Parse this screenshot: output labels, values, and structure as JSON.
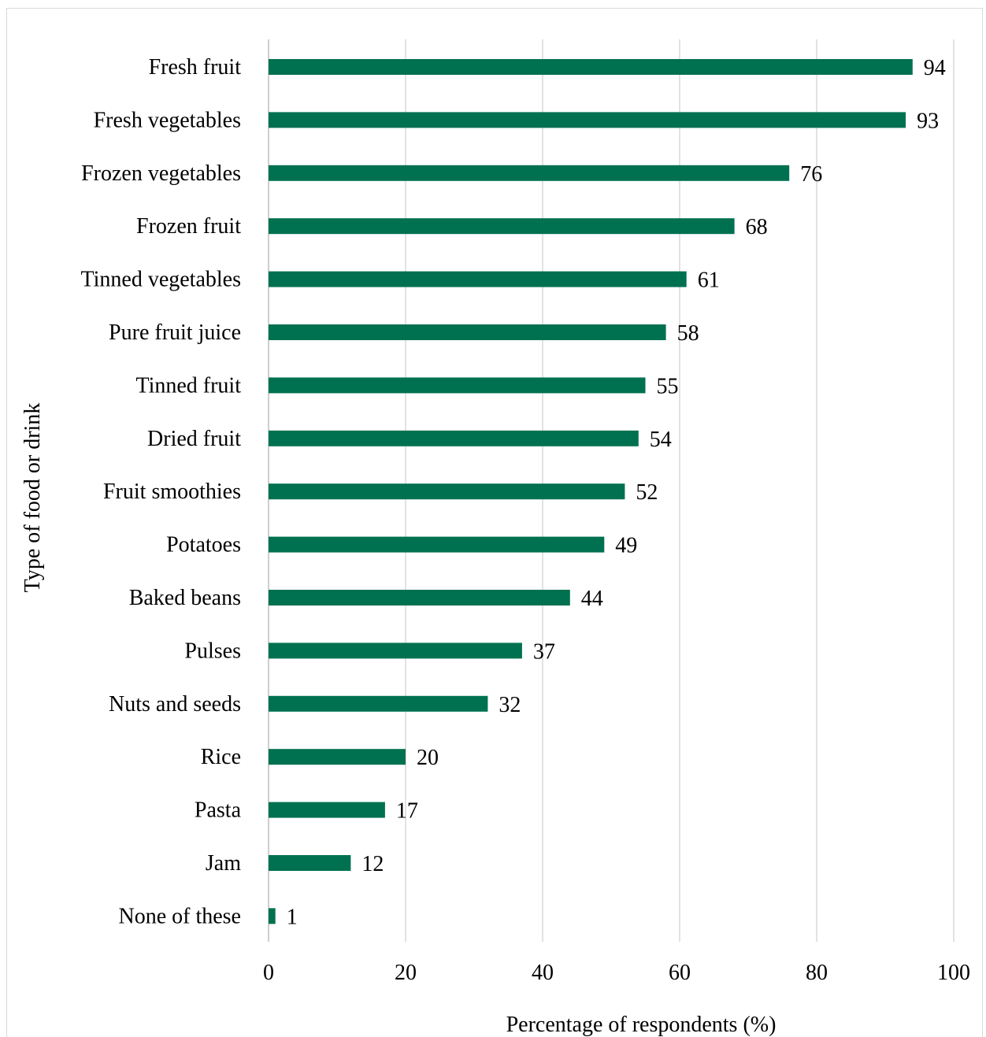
{
  "chart_data": {
    "type": "bar",
    "orientation": "horizontal",
    "categories": [
      "Fresh fruit",
      "Fresh vegetables",
      "Frozen vegetables",
      "Frozen fruit",
      "Tinned vegetables",
      "Pure fruit juice",
      "Tinned fruit",
      "Dried fruit",
      "Fruit smoothies",
      "Potatoes",
      "Baked beans",
      "Pulses",
      "Nuts and seeds",
      "Rice",
      "Pasta",
      "Jam",
      "None of these"
    ],
    "values": [
      94,
      93,
      76,
      68,
      61,
      58,
      55,
      54,
      52,
      49,
      44,
      37,
      32,
      20,
      17,
      12,
      1
    ],
    "data_labels": [
      "94",
      "93",
      "76",
      "68",
      "61",
      "58",
      "55",
      "54",
      "52",
      "49",
      "44",
      "37",
      "32",
      "20",
      "17",
      "12",
      "1"
    ],
    "title": "",
    "xlabel": "Percentage of respondents (%)",
    "ylabel": "Type of food or drink",
    "xlim": [
      0,
      100
    ],
    "x_ticks": [
      "0",
      "20",
      "40",
      "60",
      "80",
      "100"
    ],
    "grid": "vertical",
    "bar_color": "#007150",
    "grid_color": "#d9d9d9"
  }
}
